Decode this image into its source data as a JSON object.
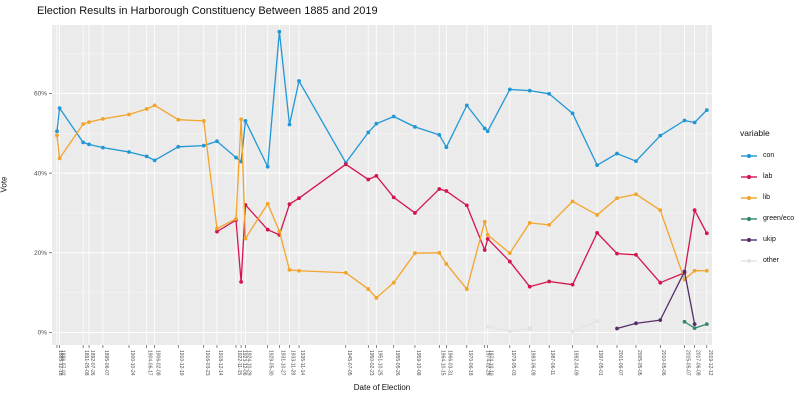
{
  "title": "Election Results in Harborough Constituency Between 1885 and 2019",
  "x_axis": {
    "label": "Date of Election"
  },
  "y_axis": {
    "label": "Vote",
    "ticks": [
      "0%",
      "20%",
      "40%",
      "60%"
    ],
    "tick_values": [
      0,
      20,
      40,
      60
    ]
  },
  "legend": {
    "title": "variable",
    "items": [
      {
        "label": "con",
        "color": "#2197d6"
      },
      {
        "label": "lab",
        "color": "#d4154e"
      },
      {
        "label": "lib",
        "color": "#f3a52b"
      },
      {
        "label": "green/eco",
        "color": "#31876b"
      },
      {
        "label": "ukip",
        "color": "#552e68"
      },
      {
        "label": "other",
        "color": "#e4e4e4"
      }
    ]
  },
  "panel": {
    "background": "#ebebeb",
    "grid_color": "#ffffff",
    "tick_color": "#333333",
    "tick_label_color": "#4d4d4d"
  },
  "chart_data": {
    "type": "line",
    "title": "Election Results in Harborough Constituency Between 1885 and 2019",
    "xlabel": "Date of Election",
    "ylabel": "Vote",
    "ylim": [
      -3,
      78
    ],
    "grid": true,
    "legend_position": "right",
    "x": [
      "1885-12-18",
      "1886-07-02",
      "1891-05-08",
      "1892-07-26",
      "1895-06-07",
      "1900-10-24",
      "1904-06-17",
      "1906-02-08",
      "1910-12-19",
      "1916-03-23",
      "1918-12-14",
      "1922-11-15",
      "1923-12-06",
      "1924-10-29",
      "1929-05-30",
      "1931-10-27",
      "1933-11-28",
      "1935-11-14",
      "1945-07-05",
      "1950-02-23",
      "1951-10-25",
      "1955-05-26",
      "1959-10-08",
      "1964-10-15",
      "1966-03-31",
      "1970-06-18",
      "1974-02-28",
      "1974-10-10",
      "1979-05-03",
      "1983-06-09",
      "1987-06-11",
      "1992-04-09",
      "1997-05-01",
      "2001-06-07",
      "2005-05-05",
      "2010-05-06",
      "2015-05-07",
      "2017-06-08",
      "2019-12-12"
    ],
    "series": [
      {
        "name": "con",
        "color": "#2197d6",
        "values": [
          50.5,
          56.3,
          47.7,
          47.2,
          46.4,
          45.3,
          44.2,
          43.2,
          46.6,
          46.9,
          48.0,
          43.9,
          42.9,
          53.1,
          41.6,
          75.5,
          52.2,
          63.1,
          42.6,
          50.2,
          52.4,
          54.2,
          51.6,
          49.6,
          46.5,
          57.0,
          51.2,
          50.5,
          61.0,
          60.7,
          59.9,
          55.0,
          42.0,
          44.9,
          43.0,
          49.4,
          53.2,
          52.7,
          55.8
        ]
      },
      {
        "name": "lab",
        "color": "#d4154e",
        "values": [
          null,
          null,
          null,
          null,
          null,
          null,
          null,
          null,
          null,
          null,
          25.3,
          28.2,
          12.7,
          32.0,
          25.8,
          24.5,
          32.2,
          33.7,
          42.2,
          38.4,
          39.3,
          33.9,
          30.0,
          36.0,
          35.5,
          31.9,
          20.7,
          23.5,
          17.8,
          11.5,
          12.8,
          12.0,
          25.0,
          19.8,
          19.5,
          12.5,
          15.0,
          30.7,
          24.9
        ]
      },
      {
        "name": "lib",
        "color": "#f3a52b",
        "values": [
          49.5,
          43.7,
          52.3,
          52.8,
          53.6,
          54.7,
          56.1,
          57.0,
          53.4,
          53.1,
          26.1,
          28.5,
          53.5,
          23.6,
          32.3,
          25.4,
          15.7,
          15.5,
          15.0,
          10.9,
          8.7,
          12.5,
          19.9,
          20.0,
          17.2,
          10.9,
          27.8,
          24.5,
          19.9,
          27.5,
          27.0,
          32.9,
          29.5,
          33.7,
          34.7,
          30.7,
          13.3,
          15.5,
          15.5
        ]
      },
      {
        "name": "green/eco",
        "color": "#31876b",
        "values": [
          null,
          null,
          null,
          null,
          null,
          null,
          null,
          null,
          null,
          null,
          null,
          null,
          null,
          null,
          null,
          null,
          null,
          null,
          null,
          null,
          null,
          null,
          null,
          null,
          null,
          null,
          null,
          null,
          null,
          1.0,
          null,
          null,
          null,
          null,
          null,
          null,
          2.7,
          1.1,
          2.1
        ]
      },
      {
        "name": "ukip",
        "color": "#552e68",
        "values": [
          null,
          null,
          null,
          null,
          null,
          null,
          null,
          null,
          null,
          null,
          null,
          null,
          null,
          null,
          null,
          null,
          null,
          null,
          null,
          null,
          null,
          null,
          null,
          null,
          null,
          null,
          null,
          null,
          null,
          null,
          null,
          null,
          null,
          1.0,
          2.3,
          3.1,
          15.3,
          2.1,
          null
        ]
      },
      {
        "name": "other",
        "color": "#e4e4e4",
        "values": [
          null,
          null,
          null,
          null,
          null,
          null,
          null,
          null,
          null,
          null,
          null,
          null,
          null,
          null,
          null,
          null,
          null,
          null,
          null,
          null,
          null,
          null,
          null,
          null,
          null,
          null,
          null,
          1.5,
          0.3,
          1.0,
          null,
          0.2,
          2.9,
          null,
          null,
          null,
          null,
          null,
          null
        ]
      }
    ]
  }
}
